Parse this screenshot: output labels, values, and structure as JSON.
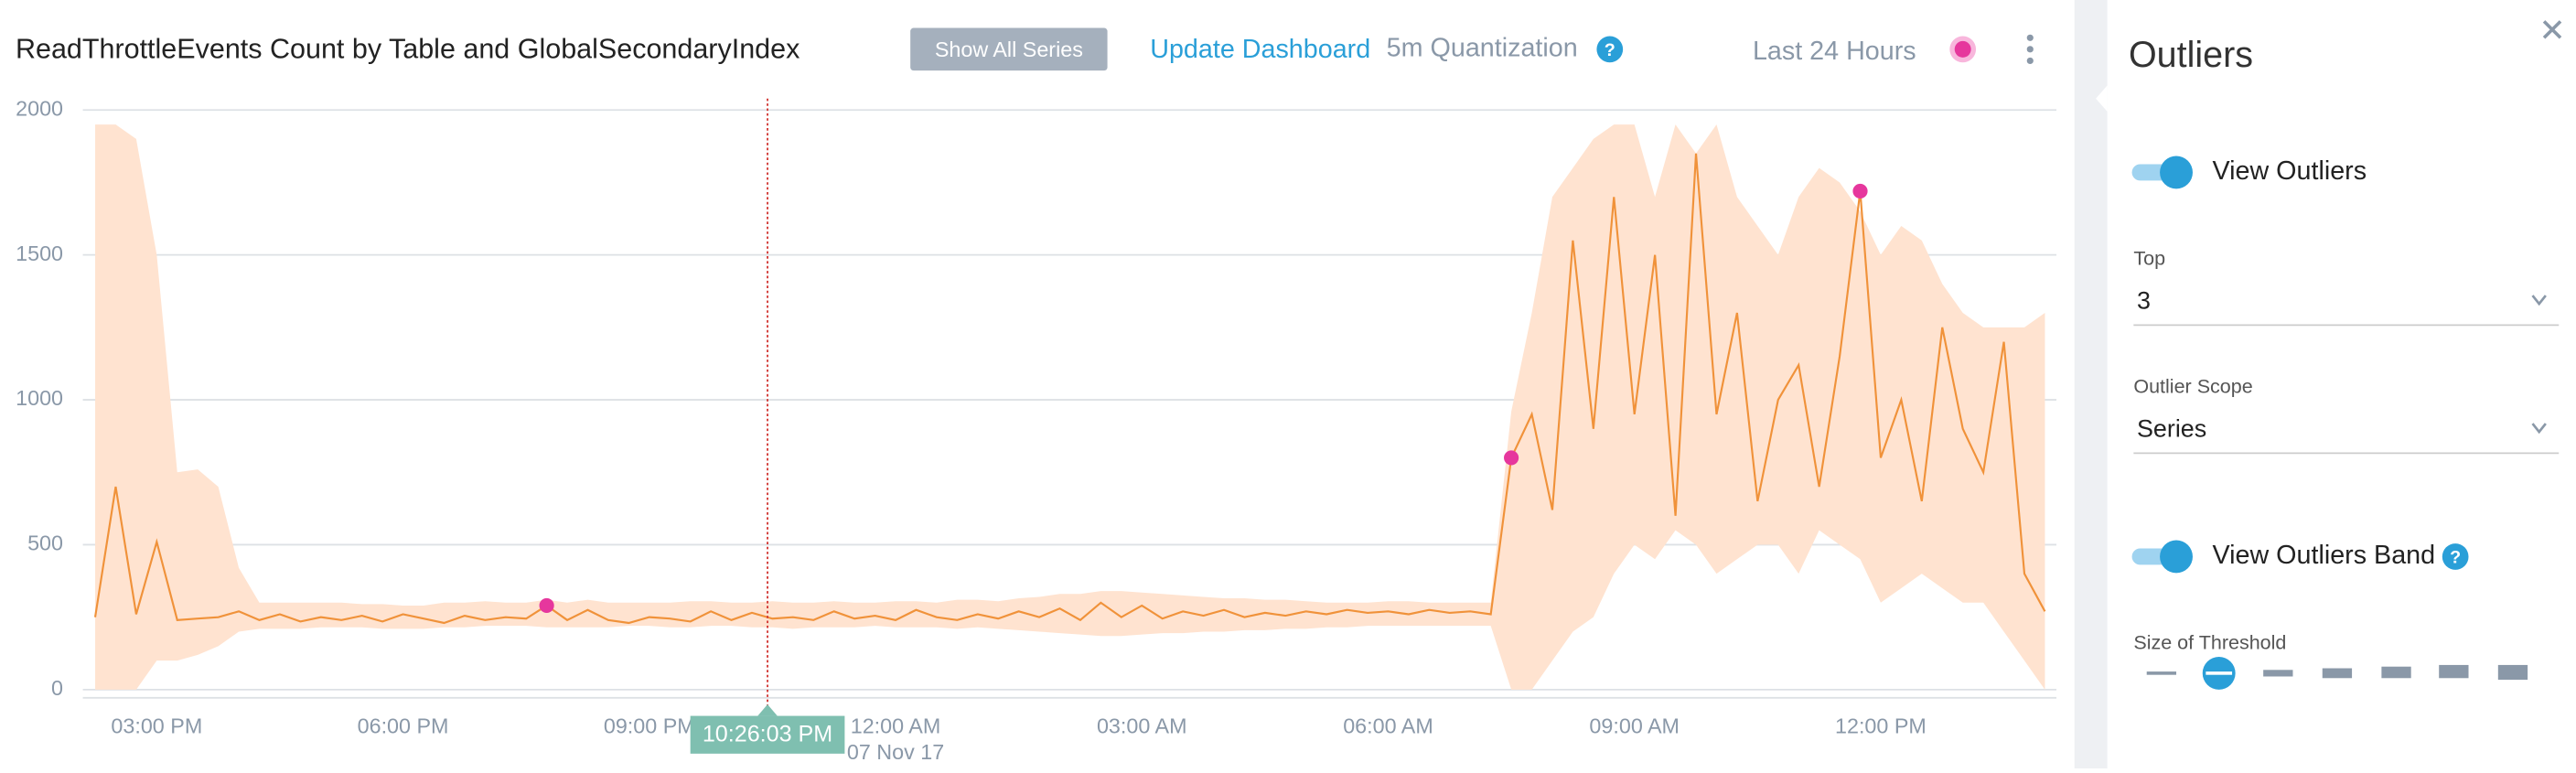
{
  "header": {
    "title": "ReadThrottleEvents Count by Table and GlobalSecondaryIndex",
    "show_all": "Show All Series",
    "update": "Update Dashboard",
    "quantization": "5m Quantization",
    "range": "Last 24 Hours",
    "help_icon": "?"
  },
  "chart_data": {
    "type": "line",
    "ylim": [
      0,
      2000
    ],
    "yticks": [
      0,
      500,
      1000,
      1500,
      2000
    ],
    "grid": true,
    "categories": [
      null,
      null,
      null,
      "03:00 PM",
      null,
      null,
      null,
      null,
      null,
      null,
      null,
      null,
      null,
      null,
      null,
      "06:00 PM",
      null,
      null,
      null,
      null,
      null,
      null,
      null,
      null,
      null,
      null,
      null,
      "09:00 PM",
      null,
      null,
      null,
      null,
      null,
      null,
      null,
      null,
      null,
      null,
      null,
      "12:00 AM",
      null,
      null,
      null,
      null,
      null,
      null,
      null,
      null,
      null,
      null,
      null,
      "03:00 AM",
      null,
      null,
      null,
      null,
      null,
      null,
      null,
      null,
      null,
      null,
      null,
      "06:00 AM",
      null,
      null,
      null,
      null,
      null,
      null,
      null,
      null,
      null,
      null,
      null,
      "09:00 AM",
      null,
      null,
      null,
      null,
      null,
      null,
      null,
      null,
      null,
      null,
      null,
      "12:00 PM",
      null,
      null,
      null,
      null,
      null,
      null,
      null,
      null
    ],
    "date_label": "07 Nov 17",
    "cursor": "10:26:03 PM",
    "series": [
      {
        "color": "#f0923a",
        "values": [
          250,
          700,
          260,
          510,
          240,
          245,
          250,
          270,
          240,
          260,
          235,
          250,
          240,
          255,
          235,
          260,
          245,
          230,
          255,
          240,
          250,
          245,
          290,
          240,
          275,
          240,
          230,
          250,
          245,
          235,
          270,
          240,
          265,
          245,
          250,
          240,
          270,
          245,
          255,
          240,
          275,
          250,
          240,
          260,
          245,
          270,
          250,
          280,
          240,
          300,
          250,
          290,
          245,
          270,
          255,
          275,
          250,
          265,
          255,
          270,
          260,
          275,
          265,
          270,
          260,
          275,
          265,
          270,
          260,
          800,
          950,
          620,
          1550,
          900,
          1700,
          950,
          1500,
          600,
          1850,
          950,
          1300,
          650,
          1000,
          1120,
          700,
          1150,
          1720,
          800,
          1000,
          650,
          1250,
          900,
          750,
          1200,
          400,
          270
        ]
      }
    ],
    "band": {
      "color": "#ffe3d0",
      "upper": [
        1950,
        1950,
        1900,
        1500,
        750,
        760,
        700,
        420,
        300,
        300,
        300,
        300,
        300,
        295,
        295,
        290,
        290,
        300,
        300,
        305,
        300,
        300,
        310,
        300,
        310,
        300,
        300,
        300,
        300,
        305,
        305,
        300,
        300,
        305,
        300,
        300,
        305,
        300,
        300,
        305,
        305,
        300,
        310,
        310,
        305,
        315,
        320,
        330,
        330,
        340,
        340,
        335,
        330,
        325,
        320,
        315,
        315,
        310,
        310,
        305,
        300,
        300,
        300,
        305,
        305,
        300,
        300,
        300,
        300,
        960,
        1300,
        1700,
        1800,
        1900,
        1950,
        1950,
        1700,
        1950,
        1850,
        1950,
        1700,
        1600,
        1500,
        1700,
        1800,
        1750,
        1650,
        1500,
        1600,
        1550,
        1400,
        1300,
        1250,
        1250,
        1250,
        1300
      ],
      "lower": [
        0,
        0,
        0,
        100,
        100,
        120,
        150,
        200,
        210,
        210,
        210,
        215,
        215,
        215,
        210,
        210,
        210,
        215,
        215,
        220,
        220,
        220,
        215,
        215,
        215,
        215,
        220,
        220,
        215,
        215,
        220,
        220,
        215,
        215,
        210,
        215,
        215,
        215,
        220,
        215,
        215,
        215,
        210,
        215,
        210,
        205,
        200,
        195,
        190,
        185,
        185,
        190,
        195,
        195,
        200,
        200,
        205,
        205,
        210,
        210,
        215,
        215,
        220,
        220,
        220,
        220,
        220,
        220,
        220,
        0,
        0,
        100,
        200,
        250,
        400,
        500,
        450,
        550,
        500,
        400,
        450,
        500,
        500,
        400,
        550,
        500,
        450,
        300,
        350,
        400,
        350,
        300,
        300,
        200,
        100,
        0
      ]
    },
    "outliers": {
      "color": "#e6379d",
      "values": [
        null,
        null,
        null,
        null,
        null,
        null,
        null,
        null,
        null,
        null,
        null,
        null,
        null,
        null,
        null,
        null,
        null,
        null,
        null,
        null,
        null,
        null,
        290,
        null,
        null,
        null,
        null,
        null,
        null,
        null,
        null,
        null,
        null,
        null,
        null,
        null,
        null,
        null,
        null,
        null,
        null,
        null,
        null,
        null,
        null,
        null,
        null,
        null,
        null,
        null,
        null,
        null,
        null,
        null,
        null,
        null,
        null,
        null,
        null,
        null,
        null,
        null,
        null,
        null,
        null,
        null,
        null,
        null,
        null,
        800,
        null,
        null,
        null,
        null,
        null,
        null,
        null,
        null,
        null,
        null,
        null,
        null,
        null,
        null,
        null,
        null,
        1720,
        null,
        null,
        null,
        null,
        null,
        null,
        null,
        null,
        null
      ]
    }
  },
  "panel": {
    "title": "Outliers",
    "view_outliers": "View Outliers",
    "top_label": "Top",
    "top_value": "3",
    "scope_label": "Outlier Scope",
    "scope_value": "Series",
    "view_band": "View Outliers Band",
    "threshold_label": "Size of Threshold"
  }
}
